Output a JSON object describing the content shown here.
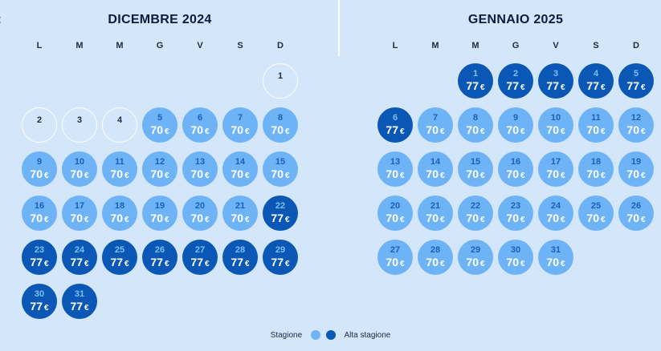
{
  "nav": {
    "prev_icon": "chevron-left-icon",
    "prev_glyph": "‹"
  },
  "colors": {
    "season": "#6fb3f7",
    "high_season": "#0a57b5",
    "background": "#d3e6fa"
  },
  "weekday_labels": [
    "L",
    "M",
    "M",
    "G",
    "V",
    "S",
    "D"
  ],
  "months": [
    {
      "title": "DICEMBRE  2024",
      "first_weekday_index": 6,
      "days": [
        {
          "n": "1",
          "price": "",
          "type": "empty"
        },
        {
          "n": "2",
          "price": "",
          "type": "empty"
        },
        {
          "n": "3",
          "price": "",
          "type": "empty"
        },
        {
          "n": "4",
          "price": "",
          "type": "empty"
        },
        {
          "n": "5",
          "price": "70",
          "type": "low"
        },
        {
          "n": "6",
          "price": "70",
          "type": "low"
        },
        {
          "n": "7",
          "price": "70",
          "type": "low"
        },
        {
          "n": "8",
          "price": "70",
          "type": "low"
        },
        {
          "n": "9",
          "price": "70",
          "type": "low"
        },
        {
          "n": "10",
          "price": "70",
          "type": "low"
        },
        {
          "n": "11",
          "price": "70",
          "type": "low"
        },
        {
          "n": "12",
          "price": "70",
          "type": "low"
        },
        {
          "n": "13",
          "price": "70",
          "type": "low"
        },
        {
          "n": "14",
          "price": "70",
          "type": "low"
        },
        {
          "n": "15",
          "price": "70",
          "type": "low"
        },
        {
          "n": "16",
          "price": "70",
          "type": "low"
        },
        {
          "n": "17",
          "price": "70",
          "type": "low"
        },
        {
          "n": "18",
          "price": "70",
          "type": "low"
        },
        {
          "n": "19",
          "price": "70",
          "type": "low"
        },
        {
          "n": "20",
          "price": "70",
          "type": "low"
        },
        {
          "n": "21",
          "price": "70",
          "type": "low"
        },
        {
          "n": "22",
          "price": "77",
          "type": "high"
        },
        {
          "n": "23",
          "price": "77",
          "type": "high"
        },
        {
          "n": "24",
          "price": "77",
          "type": "high"
        },
        {
          "n": "25",
          "price": "77",
          "type": "high"
        },
        {
          "n": "26",
          "price": "77",
          "type": "high"
        },
        {
          "n": "27",
          "price": "77",
          "type": "high"
        },
        {
          "n": "28",
          "price": "77",
          "type": "high"
        },
        {
          "n": "29",
          "price": "77",
          "type": "high"
        },
        {
          "n": "30",
          "price": "77",
          "type": "high"
        },
        {
          "n": "31",
          "price": "77",
          "type": "high"
        }
      ]
    },
    {
      "title": "GENNAIO  2025",
      "first_weekday_index": 2,
      "days": [
        {
          "n": "1",
          "price": "77",
          "type": "high"
        },
        {
          "n": "2",
          "price": "77",
          "type": "high"
        },
        {
          "n": "3",
          "price": "77",
          "type": "high"
        },
        {
          "n": "4",
          "price": "77",
          "type": "high"
        },
        {
          "n": "5",
          "price": "77",
          "type": "high"
        },
        {
          "n": "6",
          "price": "77",
          "type": "high"
        },
        {
          "n": "7",
          "price": "70",
          "type": "low"
        },
        {
          "n": "8",
          "price": "70",
          "type": "low"
        },
        {
          "n": "9",
          "price": "70",
          "type": "low"
        },
        {
          "n": "10",
          "price": "70",
          "type": "low"
        },
        {
          "n": "11",
          "price": "70",
          "type": "low"
        },
        {
          "n": "12",
          "price": "70",
          "type": "low"
        },
        {
          "n": "13",
          "price": "70",
          "type": "low"
        },
        {
          "n": "14",
          "price": "70",
          "type": "low"
        },
        {
          "n": "15",
          "price": "70",
          "type": "low"
        },
        {
          "n": "16",
          "price": "70",
          "type": "low"
        },
        {
          "n": "17",
          "price": "70",
          "type": "low"
        },
        {
          "n": "18",
          "price": "70",
          "type": "low"
        },
        {
          "n": "19",
          "price": "70",
          "type": "low"
        },
        {
          "n": "20",
          "price": "70",
          "type": "low"
        },
        {
          "n": "21",
          "price": "70",
          "type": "low"
        },
        {
          "n": "22",
          "price": "70",
          "type": "low"
        },
        {
          "n": "23",
          "price": "70",
          "type": "low"
        },
        {
          "n": "24",
          "price": "70",
          "type": "low"
        },
        {
          "n": "25",
          "price": "70",
          "type": "low"
        },
        {
          "n": "26",
          "price": "70",
          "type": "low"
        },
        {
          "n": "27",
          "price": "70",
          "type": "low"
        },
        {
          "n": "28",
          "price": "70",
          "type": "low"
        },
        {
          "n": "29",
          "price": "70",
          "type": "low"
        },
        {
          "n": "30",
          "price": "70",
          "type": "low"
        },
        {
          "n": "31",
          "price": "70",
          "type": "low"
        }
      ]
    }
  ],
  "currency": "€",
  "legend": {
    "season_label": "Stagione",
    "high_season_label": "Alta stagione"
  }
}
